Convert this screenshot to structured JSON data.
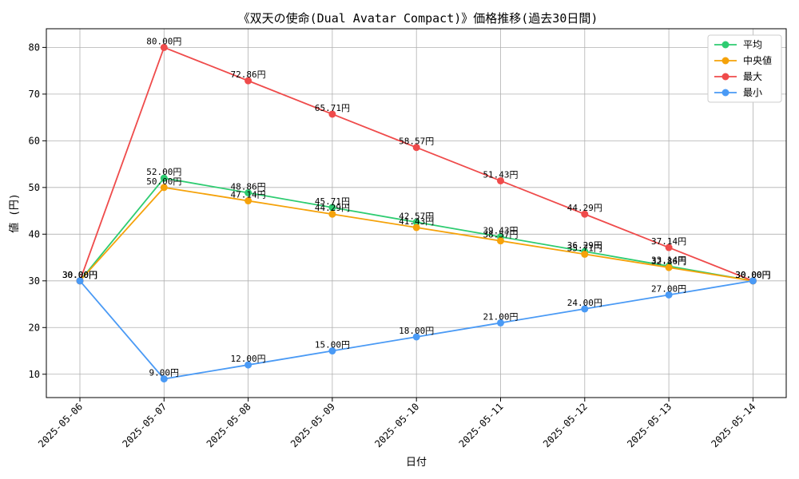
{
  "chart_data": {
    "type": "line",
    "title": "《双天の使命(Dual Avatar Compact)》価格推移(過去30日間)",
    "xlabel": "日付",
    "ylabel": "値 (円)",
    "categories": [
      "2025-05-06",
      "2025-05-07",
      "2025-05-08",
      "2025-05-09",
      "2025-05-10",
      "2025-05-11",
      "2025-05-12",
      "2025-05-13",
      "2025-05-14"
    ],
    "ylim": [
      5,
      84
    ],
    "yticks": [
      10,
      20,
      30,
      40,
      50,
      60,
      70,
      80
    ],
    "grid": true,
    "legend_position": "top-right",
    "value_suffix": "円",
    "series": [
      {
        "name": "平均",
        "color": "#2ecc71",
        "values": [
          30.0,
          52.0,
          48.86,
          45.71,
          42.57,
          39.43,
          36.29,
          33.14,
          30.0
        ]
      },
      {
        "name": "中央値",
        "color": "#f5a20a",
        "values": [
          30.0,
          50.0,
          47.14,
          44.29,
          41.43,
          38.57,
          35.71,
          32.86,
          30.0
        ]
      },
      {
        "name": "最大",
        "color": "#ef4b4b",
        "values": [
          30.0,
          80.0,
          72.86,
          65.71,
          58.57,
          51.43,
          44.29,
          37.14,
          30.0
        ]
      },
      {
        "name": "最小",
        "color": "#4a9af5",
        "values": [
          30.0,
          9.0,
          12.0,
          15.0,
          18.0,
          21.0,
          24.0,
          27.0,
          30.0
        ]
      }
    ]
  }
}
